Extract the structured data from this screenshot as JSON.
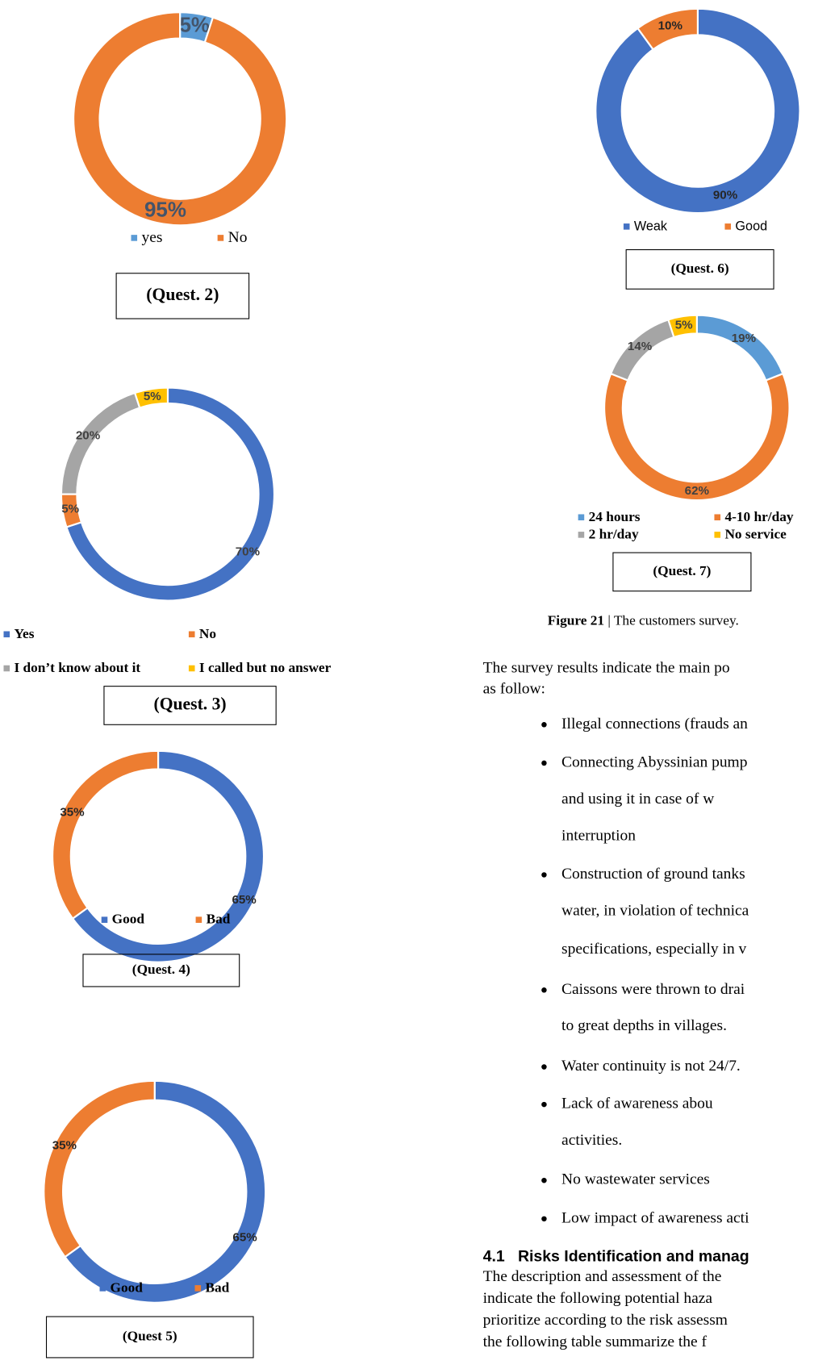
{
  "chart_data": [
    {
      "type": "donut",
      "categories": [
        "yes",
        "No"
      ],
      "values": [
        5,
        95
      ],
      "value_labels": [
        "5%",
        "95%"
      ],
      "colors": [
        "#5b9bd5",
        "#ed7d31"
      ],
      "caption": "(Quest. 2)"
    },
    {
      "type": "donut",
      "categories": [
        "Yes",
        "No",
        "I don’t know about it",
        "I called but no answer"
      ],
      "values": [
        70,
        5,
        20,
        5
      ],
      "value_labels": [
        "70%",
        "5%",
        "20%",
        "5%"
      ],
      "colors": [
        "#4472c4",
        "#ed7d31",
        "#a5a5a5",
        "#ffc000"
      ],
      "caption": "(Quest. 3)"
    },
    {
      "type": "donut",
      "categories": [
        "Good",
        "Bad"
      ],
      "values": [
        65,
        35
      ],
      "value_labels": [
        "65%",
        "35%"
      ],
      "colors": [
        "#4472c4",
        "#ed7d31"
      ],
      "caption": "(Quest. 4)"
    },
    {
      "type": "donut",
      "categories": [
        "Good",
        "Bad"
      ],
      "values": [
        65,
        35
      ],
      "value_labels": [
        "65%",
        "35%"
      ],
      "colors": [
        "#4472c4",
        "#ed7d31"
      ],
      "caption": "(Quest 5)"
    },
    {
      "type": "donut",
      "categories": [
        "Weak",
        "Good"
      ],
      "values": [
        90,
        10
      ],
      "value_labels": [
        "90%",
        "10%"
      ],
      "colors": [
        "#4472c4",
        "#ed7d31"
      ],
      "caption": "(Quest. 6)"
    },
    {
      "type": "donut",
      "categories": [
        "24 hours",
        "4-10 hr/day",
        "2 hr/day",
        "No service"
      ],
      "values": [
        19,
        62,
        14,
        5
      ],
      "value_labels": [
        "19%",
        "62%",
        "14%",
        "5%"
      ],
      "colors": [
        "#5b9bd5",
        "#ed7d31",
        "#a5a5a5",
        "#ffc000"
      ],
      "caption": "(Quest. 7)"
    }
  ],
  "figure_label": "Figure 21",
  "figure_caption": " | The customers survey.",
  "paragraph": [
    "The survey results indicate the main po",
    "as follow:"
  ],
  "bullets": [
    [
      "Illegal connections (frauds an"
    ],
    [
      "Connecting Abyssinian pump",
      "and using it in case of w",
      "interruption"
    ],
    [
      "Construction of ground tanks",
      "water, in violation of technica",
      "specifications, especially in v"
    ],
    [
      "Caissons were thrown to drai",
      "to great depths in villages."
    ],
    [
      "Water continuity is not 24/7."
    ],
    [
      "Lack of awareness abou",
      "activities."
    ],
    [
      "No wastewater services"
    ],
    [
      "Low impact of awareness acti"
    ]
  ],
  "section_heading": "4.1   Risks Identification and manag",
  "section_text": [
    "The description and assessment of the",
    "indicate the following potential haza",
    "prioritize according to the risk assessm",
    "the following table summarize the f"
  ]
}
